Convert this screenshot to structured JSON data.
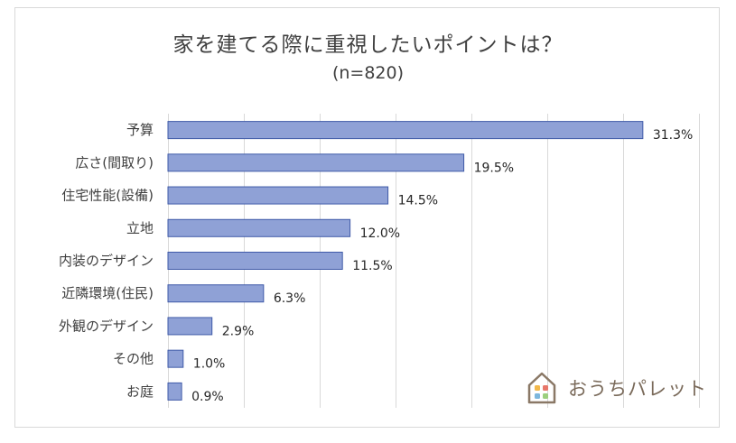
{
  "chart_data": {
    "type": "bar",
    "orientation": "horizontal",
    "title": "家を建てる際に重視したいポイントは？",
    "subtitle": "(n=820)",
    "categories": [
      "予算",
      "広さ(間取り)",
      "住宅性能(設備)",
      "立地",
      "内装のデザイン",
      "近隣環境(住民)",
      "外観のデザイン",
      "その他",
      "お庭"
    ],
    "values": [
      31.3,
      19.5,
      14.5,
      12.0,
      11.5,
      6.3,
      2.9,
      1.0,
      0.9
    ],
    "value_labels": [
      "31.3%",
      "19.5%",
      "14.5%",
      "12.0%",
      "11.5%",
      "6.3%",
      "2.9%",
      "1.0%",
      "0.9%"
    ],
    "xlim": [
      0,
      35
    ],
    "grid": true,
    "bar_color": "#8fa1d6",
    "bar_border_color": "#3f5aa8"
  },
  "logo": {
    "text": "おうちパレット",
    "icon": "house-palette-icon"
  }
}
